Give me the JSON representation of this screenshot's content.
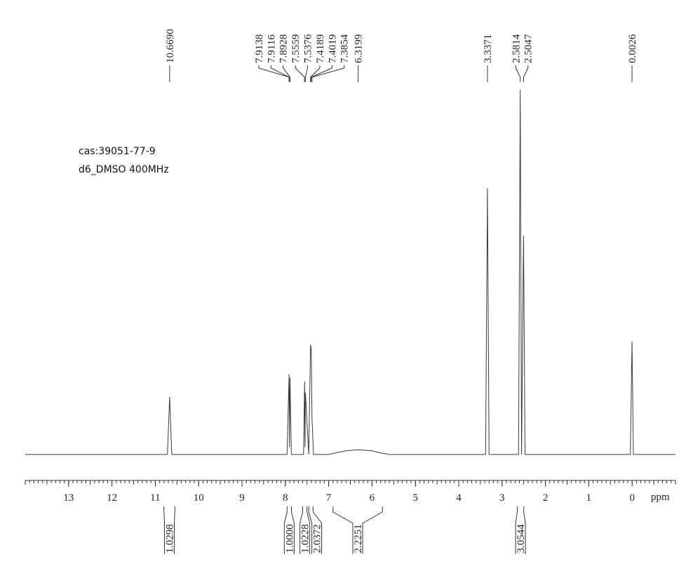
{
  "chart_data": {
    "type": "nmr",
    "annotations": [
      "cas:39051-77-9",
      "d6_DMSO 400MHz"
    ],
    "x_label": "ppm",
    "xlim": [
      14,
      -1
    ],
    "xticks": [
      13,
      12,
      11,
      10,
      9,
      8,
      7,
      6,
      5,
      4,
      3,
      2,
      1,
      0
    ],
    "color": "#3a3a3a",
    "x": [
      14,
      10.72,
      10.669,
      10.62,
      7.96,
      7.9138,
      7.905,
      7.8928,
      7.86,
      7.58,
      7.5559,
      7.546,
      7.5376,
      7.46,
      7.4189,
      7.4019,
      7.3854,
      7.35,
      7.0,
      6.8,
      6.6,
      6.3199,
      6.0,
      5.8,
      5.6,
      3.38,
      3.3371,
      3.3,
      2.62,
      2.5814,
      2.55,
      2.5047,
      2.47,
      0.04,
      0.0026,
      -0.03,
      -1
    ],
    "values": [
      0,
      0,
      15.8,
      0,
      0,
      22,
      2,
      21,
      0,
      0,
      20,
      2,
      17,
      0,
      30,
      29,
      10,
      0,
      0,
      0.5,
      1,
      1.3,
      1,
      0.4,
      0,
      0,
      73,
      0,
      0,
      100,
      0,
      60,
      0,
      0,
      31,
      0,
      0
    ],
    "peak_labels": [
      {
        "value": 10.669,
        "label": "10.6690"
      },
      {
        "value": 7.9138,
        "label": "7.9138"
      },
      {
        "value": 7.9116,
        "label": "7.9116"
      },
      {
        "value": 7.8928,
        "label": "7.8928"
      },
      {
        "value": 7.5559,
        "label": "7.5559"
      },
      {
        "value": 7.5376,
        "label": "7.5376"
      },
      {
        "value": 7.4189,
        "label": "7.4189"
      },
      {
        "value": 7.4019,
        "label": "7.4019"
      },
      {
        "value": 7.3854,
        "label": "7.3854"
      },
      {
        "value": 6.3199,
        "label": "6.3199"
      },
      {
        "value": 3.3371,
        "label": "3.3371"
      },
      {
        "value": 2.5814,
        "label": "2.5814"
      },
      {
        "value": 2.5047,
        "label": "2.5047"
      },
      {
        "value": 0.0026,
        "label": "0.0026"
      }
    ],
    "integrals": [
      {
        "value": 1.0298,
        "label": "1.0298",
        "range": [
          10.8,
          10.55
        ]
      },
      {
        "value": 1.0,
        "label": "1.0000",
        "range": [
          7.96,
          7.86
        ]
      },
      {
        "value": 1.0228,
        "label": "1.0228",
        "range": [
          7.6,
          7.5
        ]
      },
      {
        "value": 2.0372,
        "label": "2.0372",
        "range": [
          7.46,
          7.36
        ]
      },
      {
        "value": 2.2251,
        "label": "2.2251",
        "range": [
          6.9,
          5.76
        ]
      },
      {
        "value": 3.0544,
        "label": "3.0544",
        "range": [
          2.65,
          2.5
        ]
      }
    ]
  }
}
